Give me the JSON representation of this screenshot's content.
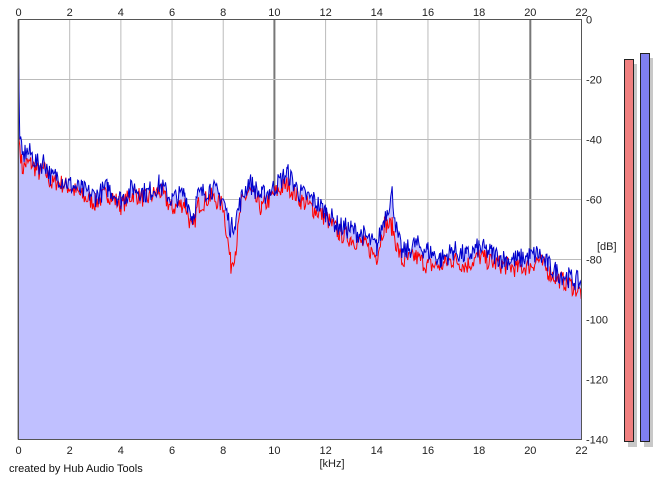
{
  "chart_data": {
    "type": "area",
    "title": "",
    "xlabel": "[kHz]",
    "ylabel": "[dB]",
    "xlim": [
      0,
      22
    ],
    "ylim": [
      -140,
      0
    ],
    "x_ticks": [
      0,
      2,
      4,
      6,
      8,
      10,
      12,
      14,
      16,
      18,
      20,
      22
    ],
    "y_ticks": [
      0,
      -20,
      -40,
      -60,
      -80,
      -100,
      -120,
      -140
    ],
    "y_tick_labels": [
      "0",
      "-20",
      "-40",
      "-60",
      "-80",
      "-100",
      "-120",
      "-140"
    ],
    "grid": true,
    "fill_color": "#c0c0ff",
    "series": [
      {
        "color": "#ff0000",
        "x": [
          0.0,
          0.05,
          0.15,
          0.3,
          0.5,
          0.8,
          1.0,
          1.3,
          1.5,
          2.0,
          2.5,
          3.0,
          3.5,
          4.0,
          4.5,
          5.0,
          5.5,
          6.0,
          6.5,
          6.8,
          7.0,
          7.5,
          8.0,
          8.3,
          8.5,
          8.7,
          9.0,
          9.5,
          10.0,
          10.5,
          11.0,
          11.5,
          12.0,
          12.5,
          13.0,
          13.5,
          14.0,
          14.3,
          14.6,
          14.8,
          15.0,
          15.5,
          16.0,
          16.5,
          17.0,
          17.5,
          18.0,
          18.5,
          19.0,
          19.5,
          20.0,
          20.3,
          20.7,
          21.0,
          21.5,
          22.0
        ],
        "y": [
          -39,
          -42,
          -50,
          -48,
          -48,
          -51,
          -50,
          -55,
          -54,
          -56,
          -59,
          -61,
          -58,
          -62,
          -58,
          -60,
          -57,
          -63,
          -61,
          -71,
          -62,
          -59,
          -62,
          -82,
          -76,
          -62,
          -57,
          -63,
          -58,
          -55,
          -60,
          -63,
          -66,
          -71,
          -73,
          -75,
          -79,
          -68,
          -69,
          -76,
          -81,
          -79,
          -82,
          -82,
          -80,
          -82,
          -79,
          -81,
          -82,
          -83,
          -82,
          -80,
          -84,
          -86,
          -88,
          -91
        ]
      },
      {
        "color": "#0000cc",
        "x": [
          0.0,
          0.05,
          0.15,
          0.3,
          0.5,
          0.8,
          1.0,
          1.3,
          1.5,
          2.0,
          2.5,
          3.0,
          3.5,
          4.0,
          4.5,
          5.0,
          5.5,
          6.0,
          6.5,
          6.8,
          7.0,
          7.5,
          8.0,
          8.3,
          8.5,
          8.7,
          9.0,
          9.5,
          10.0,
          10.5,
          11.0,
          11.5,
          12.0,
          12.5,
          13.0,
          13.5,
          14.0,
          14.3,
          14.6,
          14.8,
          15.0,
          15.5,
          16.0,
          16.5,
          17.0,
          17.5,
          18.0,
          18.5,
          19.0,
          19.5,
          20.0,
          20.3,
          20.7,
          21.0,
          21.5,
          22.0
        ],
        "y": [
          -13,
          -40,
          -46,
          -44,
          -45,
          -49,
          -47,
          -53,
          -52,
          -55,
          -57,
          -59,
          -56,
          -60,
          -56,
          -58,
          -55,
          -60,
          -58,
          -66,
          -59,
          -56,
          -60,
          -70,
          -66,
          -60,
          -54,
          -59,
          -56,
          -51,
          -58,
          -60,
          -64,
          -69,
          -70,
          -72,
          -76,
          -66,
          -58,
          -72,
          -78,
          -75,
          -77,
          -80,
          -77,
          -79,
          -76,
          -78,
          -80,
          -80,
          -79,
          -78,
          -82,
          -84,
          -86,
          -88
        ]
      }
    ]
  },
  "meters": {
    "left_level": -13,
    "right_level": -11,
    "left_color": "#f08080",
    "right_color": "#8080f0"
  },
  "credit": "created by Hub Audio Tools"
}
